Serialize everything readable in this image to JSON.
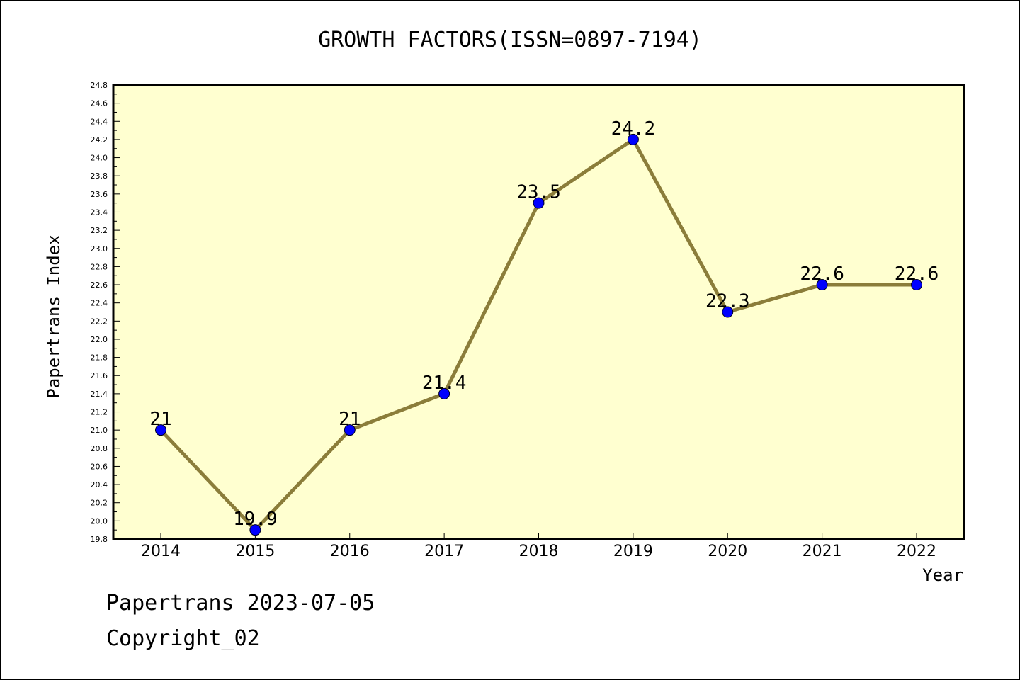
{
  "chart_data": {
    "type": "line",
    "title": "GROWTH FACTORS(ISSN=0897-7194)",
    "xlabel": "Year",
    "ylabel": "Papertrans Index",
    "categories": [
      "2014",
      "2015",
      "2016",
      "2017",
      "2018",
      "2019",
      "2020",
      "2021",
      "2022"
    ],
    "series": [
      {
        "values": [
          21,
          19.9,
          21,
          21.4,
          23.5,
          24.2,
          22.3,
          22.6,
          22.6
        ],
        "labels": [
          "21",
          "19.9",
          "21",
          "21.4",
          "23.5",
          "24.2",
          "22.3",
          "22.6",
          "22.6"
        ]
      }
    ],
    "ylim": [
      19.8,
      24.8
    ],
    "yticks": [
      "19.8",
      "20.0",
      "20.2",
      "20.4",
      "20.6",
      "20.8",
      "21.0",
      "21.2",
      "21.4",
      "21.6",
      "21.8",
      "22.0",
      "22.2",
      "22.4",
      "22.6",
      "22.8",
      "23.0",
      "23.2",
      "23.4",
      "23.6",
      "23.8",
      "24.0",
      "24.2",
      "24.4",
      "24.6",
      "24.8"
    ],
    "grid": false,
    "colors": {
      "plot_background": "#ffffd0",
      "line": "#8b7d3a",
      "marker": "#0000ff"
    }
  },
  "footer": {
    "line1": "Papertrans 2023-07-05",
    "line2": "Copyright_02"
  }
}
